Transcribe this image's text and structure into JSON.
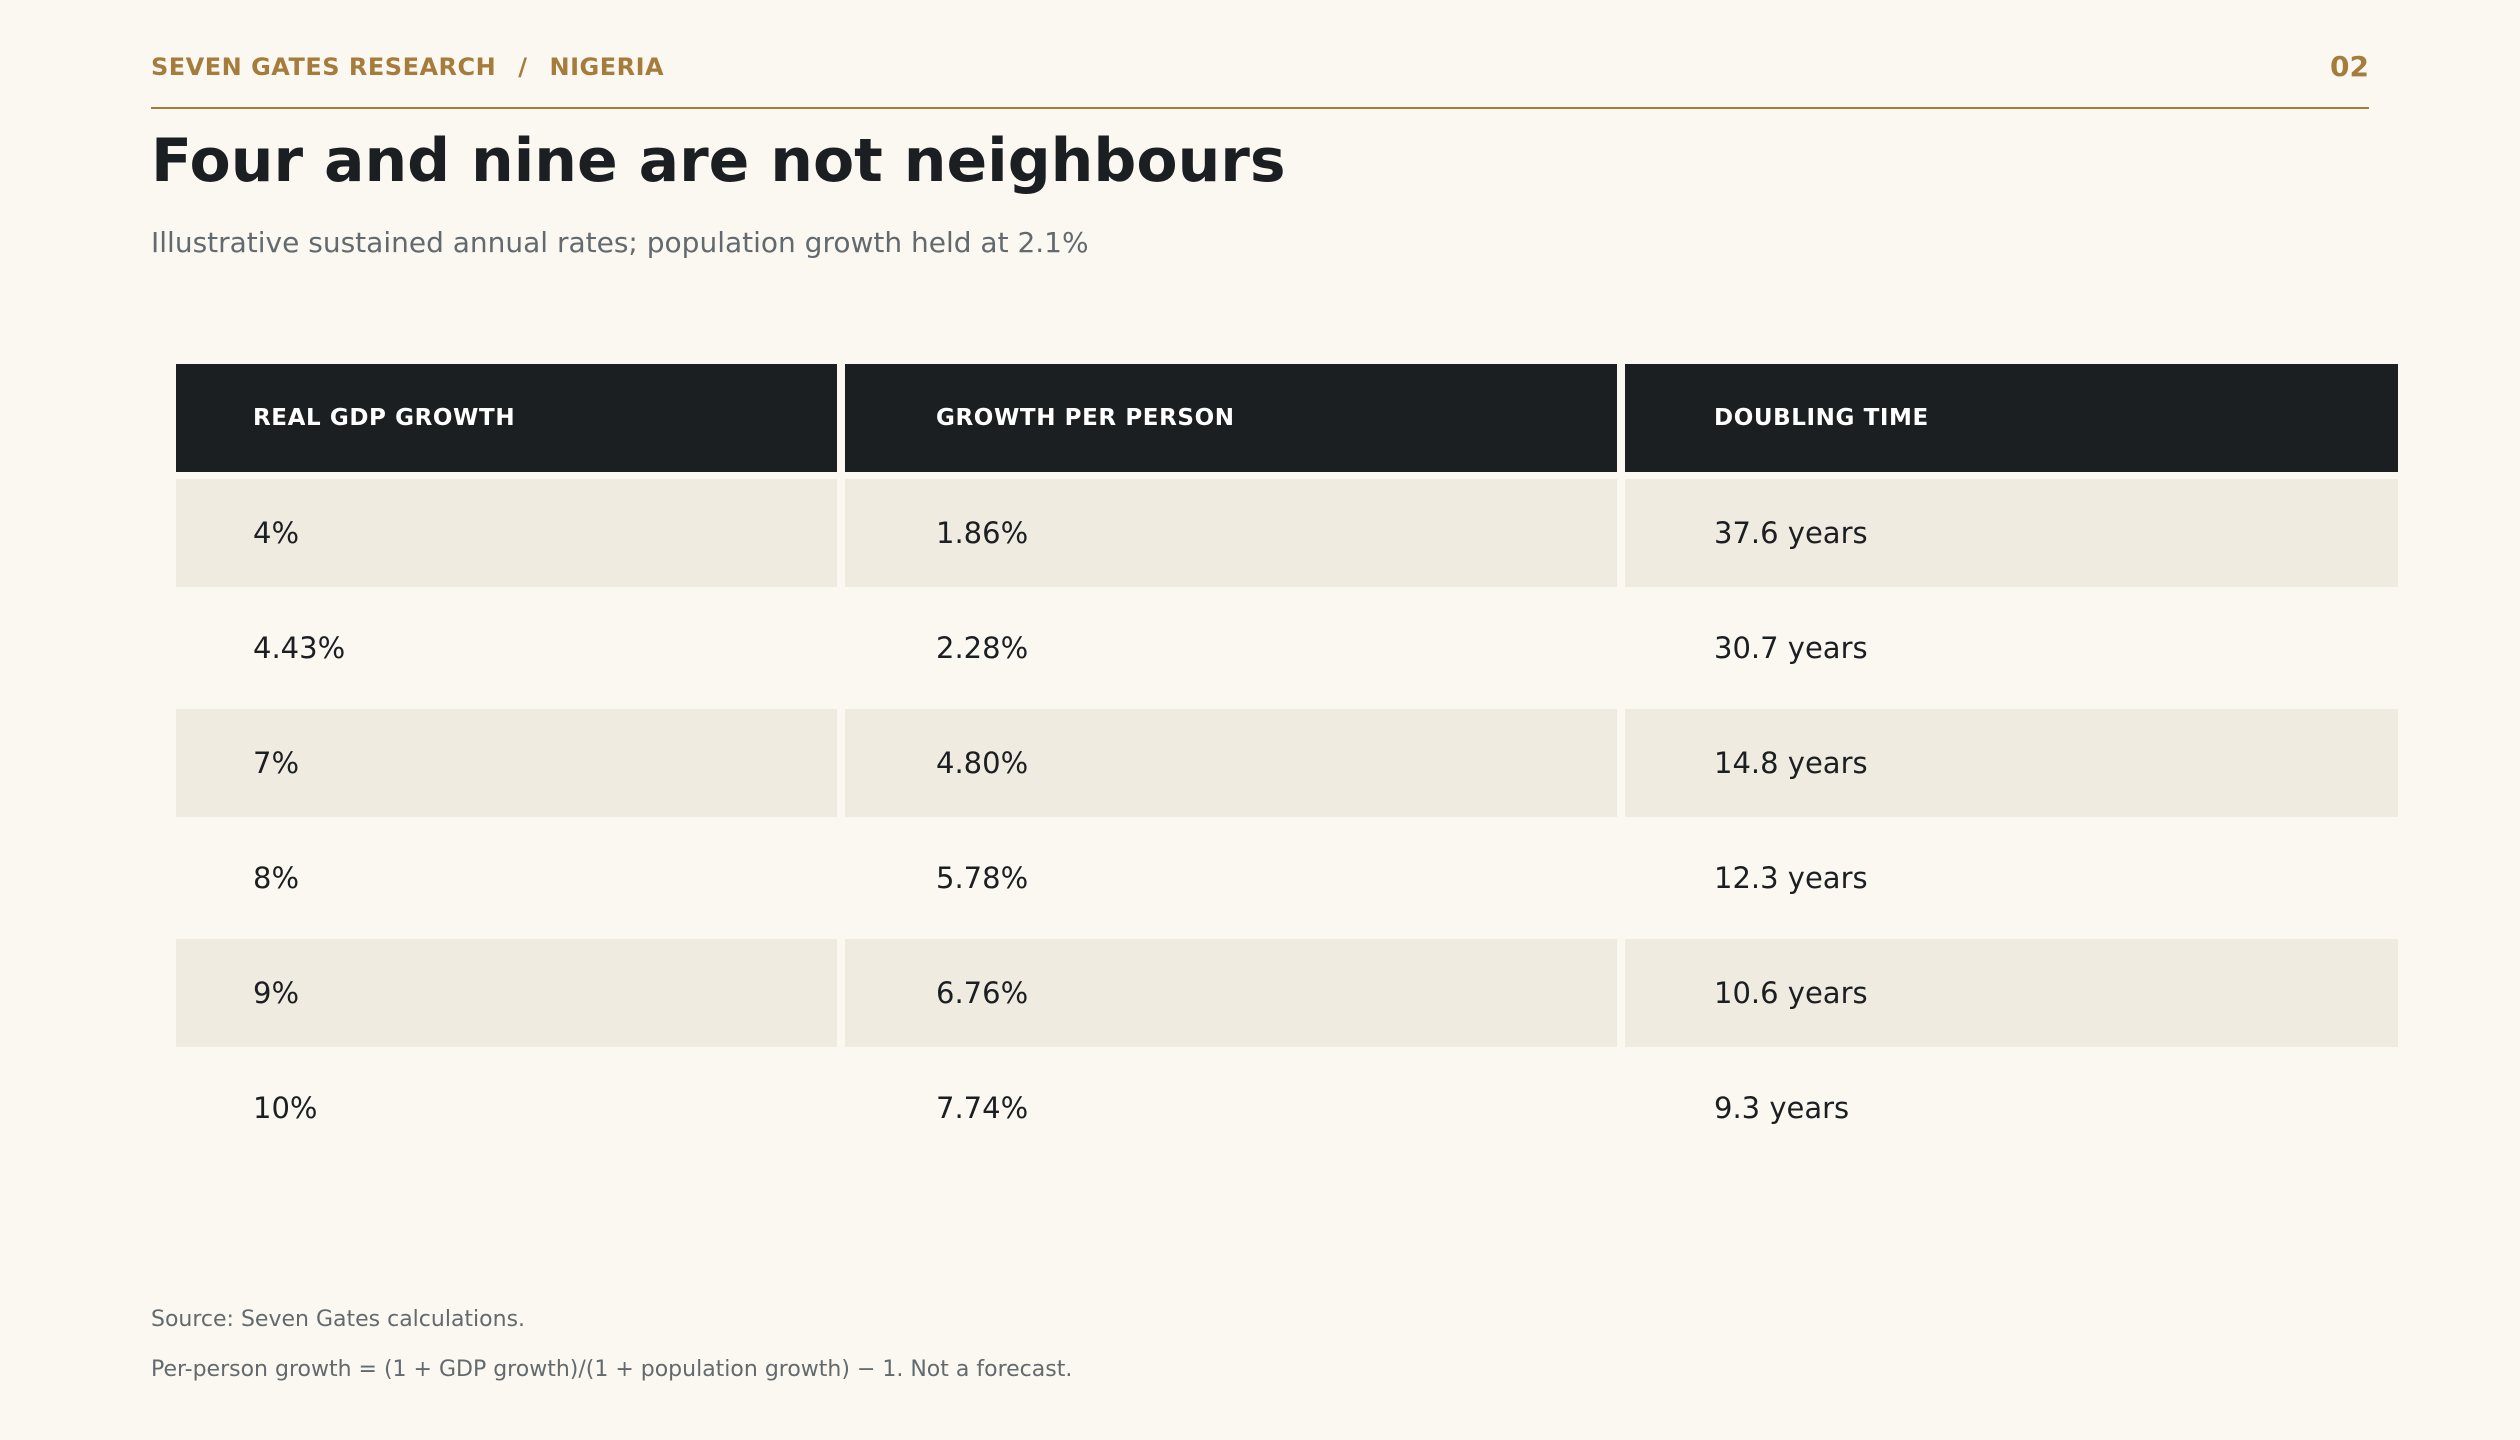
{
  "header": {
    "org": "SEVEN GATES RESEARCH",
    "separator": "/",
    "country": "NIGERIA",
    "page_number": "02"
  },
  "title": "Four and nine are not neighbours",
  "subtitle": "Illustrative sustained annual rates; population growth held at 2.1%",
  "table": {
    "columns": [
      "REAL GDP GROWTH",
      "GROWTH PER PERSON",
      "DOUBLING TIME"
    ],
    "rows": [
      [
        "4%",
        "1.86%",
        "37.6 years"
      ],
      [
        "4.43%",
        "2.28%",
        "30.7 years"
      ],
      [
        "7%",
        "4.80%",
        "14.8 years"
      ],
      [
        "8%",
        "5.78%",
        "12.3 years"
      ],
      [
        "9%",
        "6.76%",
        "10.6 years"
      ],
      [
        "10%",
        "7.74%",
        "9.3 years"
      ]
    ]
  },
  "footer": {
    "source": "Source: Seven Gates calculations.",
    "note": "Per-person growth = (1 + GDP growth)/(1 + population growth) − 1. Not a forecast."
  },
  "colors": {
    "background": "#fbf8f1",
    "accent": "#a67c3c",
    "header_fill": "#1b1f22",
    "row_shade": "#efebe1"
  }
}
